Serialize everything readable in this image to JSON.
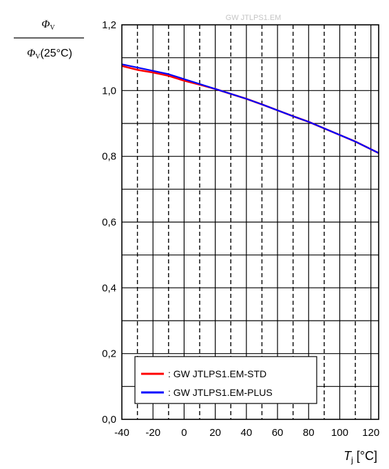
{
  "chart_data": {
    "type": "line",
    "title": "GW JTLPS1.EM",
    "ylabel": {
      "numerator_symbol": "Φ",
      "numerator_sub": "V",
      "denominator_symbol": "Φ",
      "denominator_sub": "V",
      "denominator_suffix": "(25°C)"
    },
    "xlabel": {
      "symbol": "T",
      "sub": "j",
      "unit": " [°C]"
    },
    "xlim": [
      -40,
      125
    ],
    "ylim": [
      0,
      1.2
    ],
    "x_ticks": [
      -40,
      -20,
      0,
      20,
      40,
      60,
      80,
      100,
      120
    ],
    "x_tick_labels": [
      "-40",
      "-20",
      "0",
      "20",
      "40",
      "60",
      "80",
      "100",
      "120"
    ],
    "y_ticks": [
      0,
      0.2,
      0.4,
      0.6,
      0.8,
      1.0,
      1.2
    ],
    "y_tick_labels": [
      "0,0",
      "0,2",
      "0,4",
      "0,6",
      "0,8",
      "1,0",
      "1,2"
    ],
    "grid": true,
    "legend_position": "bottom-left",
    "series": [
      {
        "name": ": GW JTLPS1.EM-STD",
        "color": "#ff0000",
        "x": [
          -40,
          -30,
          -20,
          -10,
          0,
          10,
          20,
          30,
          40,
          50,
          60,
          70,
          80,
          90,
          100,
          110,
          125
        ],
        "y": [
          1.075,
          1.063,
          1.055,
          1.045,
          1.03,
          1.018,
          1.005,
          0.99,
          0.975,
          0.958,
          0.94,
          0.922,
          0.905,
          0.885,
          0.865,
          0.845,
          0.81
        ]
      },
      {
        "name": ": GW JTLPS1.EM-PLUS",
        "color": "#0000ff",
        "x": [
          -40,
          -30,
          -20,
          -10,
          0,
          10,
          20,
          30,
          40,
          50,
          60,
          70,
          80,
          90,
          100,
          110,
          125
        ],
        "y": [
          1.08,
          1.07,
          1.06,
          1.05,
          1.035,
          1.02,
          1.005,
          0.99,
          0.975,
          0.958,
          0.94,
          0.922,
          0.905,
          0.885,
          0.865,
          0.845,
          0.81
        ]
      }
    ]
  }
}
